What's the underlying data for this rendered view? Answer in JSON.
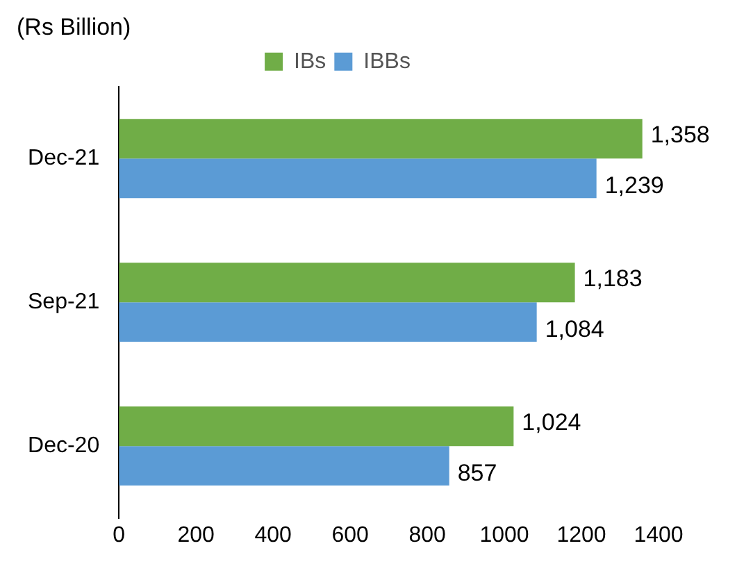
{
  "chart_data": {
    "type": "bar",
    "orientation": "horizontal",
    "title": "(Rs Billion)",
    "categories": [
      "Dec-21",
      "Sep-21",
      "Dec-20"
    ],
    "series": [
      {
        "name": "IBs",
        "color": "#70ad47",
        "values": [
          1358,
          1183,
          1024
        ],
        "value_labels": [
          "1,358",
          "1,183",
          "1,024"
        ]
      },
      {
        "name": "IBBs",
        "color": "#5b9bd5",
        "values": [
          1239,
          1084,
          857
        ],
        "value_labels": [
          "1,239",
          "1,084",
          "857"
        ]
      }
    ],
    "xlim": [
      0,
      1400
    ],
    "xticks": [
      0,
      200,
      400,
      600,
      800,
      1000,
      1200,
      1400
    ],
    "grid": false,
    "legend": "top"
  }
}
